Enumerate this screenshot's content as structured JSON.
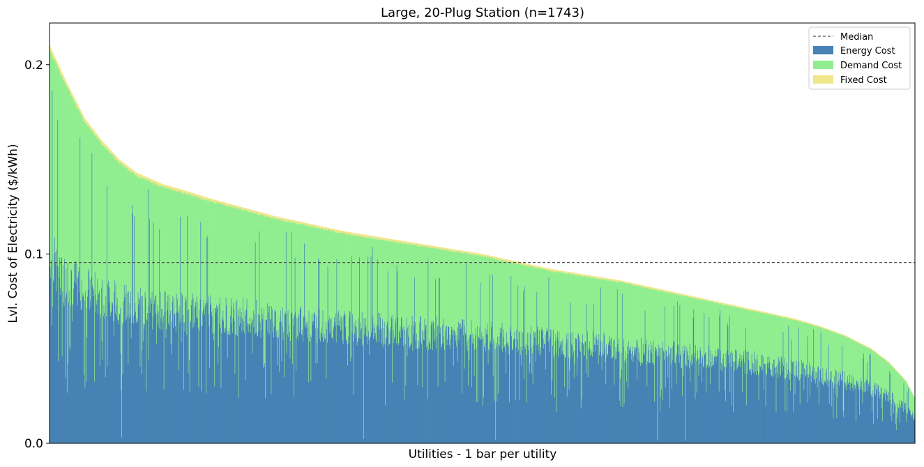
{
  "chart_data": {
    "type": "bar",
    "stacked": true,
    "title": "Large, 20-Plug Station (n=1743)",
    "xlabel": "Utilities - 1 bar per utility",
    "ylabel": "Lvl. Cost of Electricity ($/kWh)",
    "n_bars": 1743,
    "ylim": [
      0.0,
      0.222
    ],
    "yticks": [
      {
        "value": 0.0,
        "label": "0.0"
      },
      {
        "value": 0.1,
        "label": "0.1"
      },
      {
        "value": 0.2,
        "label": "0.2"
      }
    ],
    "median": 0.0955,
    "total_profile": [
      [
        0.0,
        0.21
      ],
      [
        0.02,
        0.19
      ],
      [
        0.04,
        0.172
      ],
      [
        0.06,
        0.16
      ],
      [
        0.08,
        0.15
      ],
      [
        0.1,
        0.143
      ],
      [
        0.13,
        0.137
      ],
      [
        0.16,
        0.133
      ],
      [
        0.18,
        0.13
      ],
      [
        0.22,
        0.125
      ],
      [
        0.26,
        0.12
      ],
      [
        0.3,
        0.116
      ],
      [
        0.34,
        0.112
      ],
      [
        0.38,
        0.109
      ],
      [
        0.42,
        0.106
      ],
      [
        0.46,
        0.103
      ],
      [
        0.5,
        0.1
      ],
      [
        0.54,
        0.096
      ],
      [
        0.58,
        0.092
      ],
      [
        0.62,
        0.089
      ],
      [
        0.66,
        0.086
      ],
      [
        0.7,
        0.082
      ],
      [
        0.74,
        0.078
      ],
      [
        0.78,
        0.074
      ],
      [
        0.82,
        0.07
      ],
      [
        0.86,
        0.066
      ],
      [
        0.89,
        0.062
      ],
      [
        0.92,
        0.057
      ],
      [
        0.95,
        0.05
      ],
      [
        0.97,
        0.043
      ],
      [
        0.99,
        0.033
      ],
      [
        1.0,
        0.024
      ]
    ],
    "energy_share_profile": [
      [
        0.0,
        0.5
      ],
      [
        0.01,
        0.46
      ],
      [
        0.05,
        0.5
      ],
      [
        0.2,
        0.55
      ],
      [
        0.5,
        0.58
      ],
      [
        0.8,
        0.62
      ],
      [
        1.0,
        0.58
      ]
    ],
    "series": [
      {
        "name": "Energy Cost",
        "color": "#4682b4"
      },
      {
        "name": "Demand Cost",
        "color": "#90ee90"
      },
      {
        "name": "Fixed Cost",
        "color": "#f0e68c"
      }
    ],
    "median_line": {
      "name": "Median",
      "color": "#555555"
    },
    "legend_position": "top-right",
    "grid": false
  }
}
